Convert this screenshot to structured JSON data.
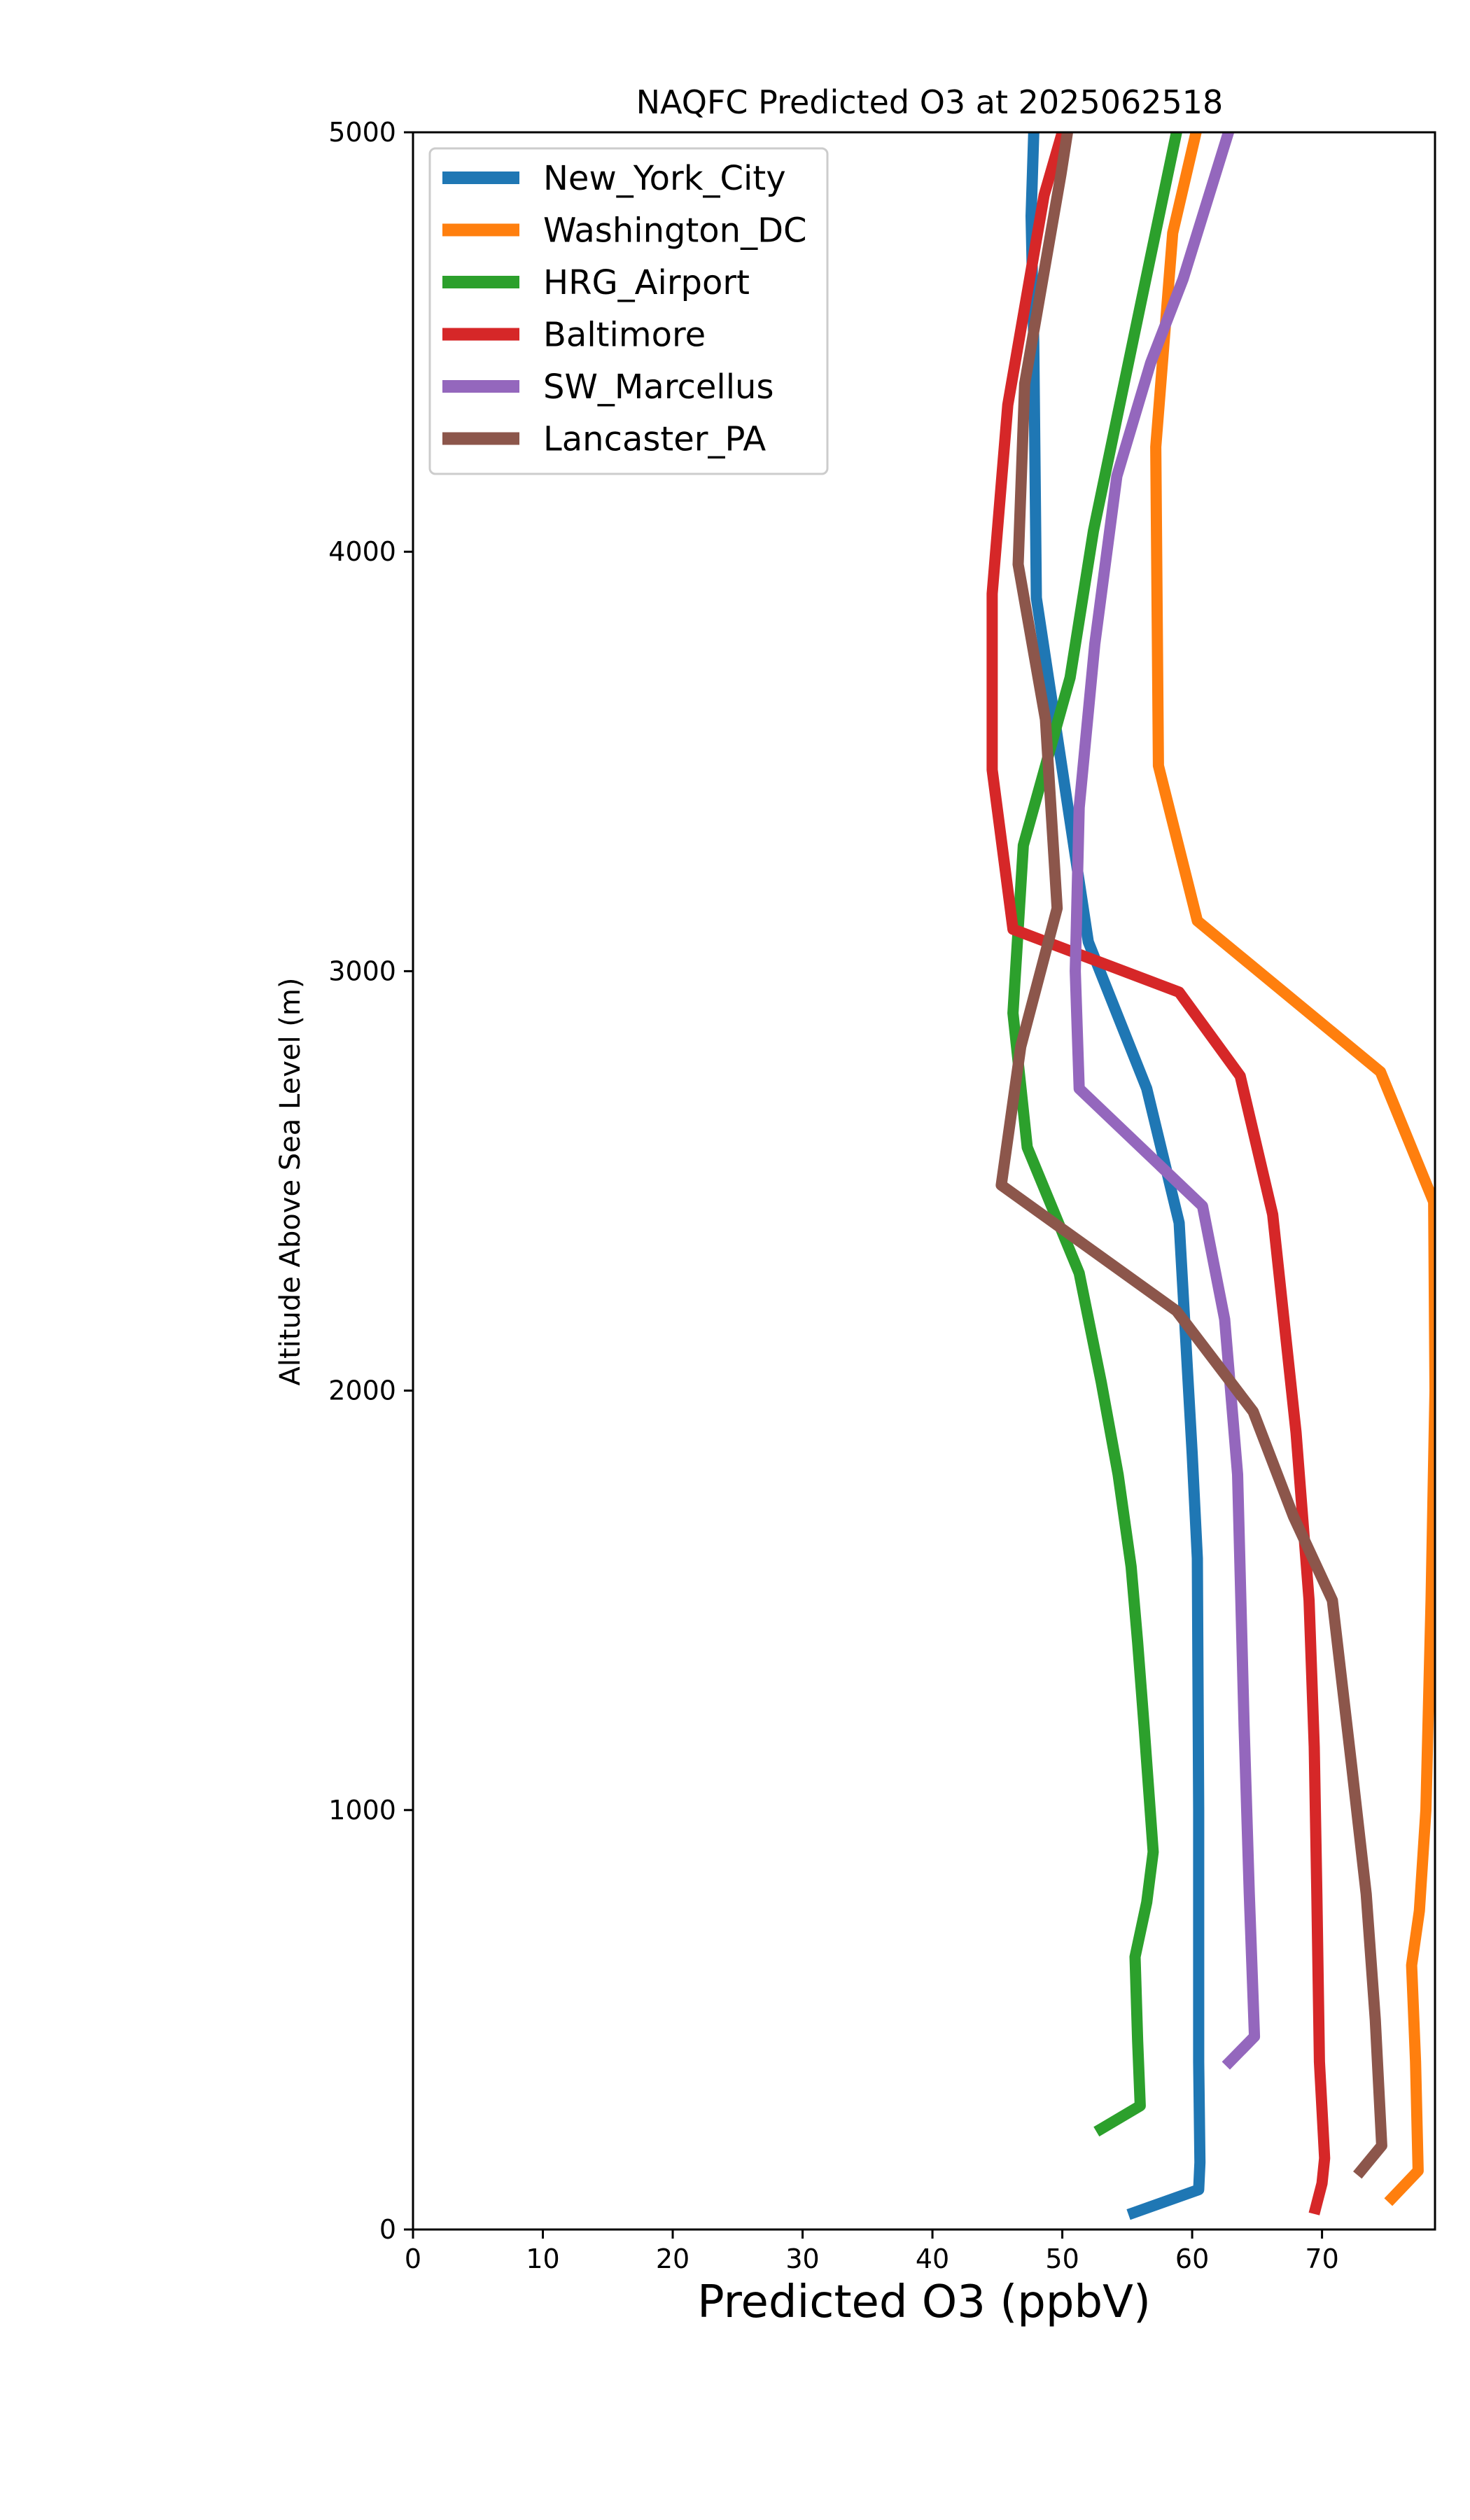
{
  "chart_data": {
    "type": "line",
    "title": "NAQFC Predicted O3 at 2025062518",
    "xlabel": "Predicted O3 (ppbV)",
    "ylabel": "Altitude Above Sea Level (m)",
    "xlim": [
      0,
      78.7
    ],
    "ylim": [
      0,
      5000
    ],
    "xticks": [
      "0",
      "10",
      "20",
      "30",
      "40",
      "50",
      "60",
      "70"
    ],
    "yticks": [
      "0",
      "1000",
      "2000",
      "3000",
      "4000",
      "5000"
    ],
    "grid": false,
    "legend_position": "upper-left",
    "series": [
      {
        "name": "New_York_City",
        "color": "#1f77b4",
        "points": [
          [
            55.5,
            40
          ],
          [
            60.5,
            95
          ],
          [
            60.6,
            160
          ],
          [
            60.5,
            400
          ],
          [
            60.5,
            1000
          ],
          [
            60.4,
            1600
          ],
          [
            60.0,
            1850
          ],
          [
            59.0,
            2400
          ],
          [
            56.5,
            2720
          ],
          [
            52.0,
            3070
          ],
          [
            48.0,
            3890
          ],
          [
            47.8,
            4500
          ],
          [
            47.6,
            4800
          ],
          [
            47.8,
            5000
          ]
        ]
      },
      {
        "name": "Washington_DC",
        "color": "#ff7f0e",
        "points": [
          [
            75.4,
            75
          ],
          [
            77.4,
            140
          ],
          [
            77.2,
            400
          ],
          [
            76.9,
            630
          ],
          [
            77.5,
            760
          ],
          [
            78.0,
            1000
          ],
          [
            78.4,
            1500
          ],
          [
            78.7,
            2000
          ],
          [
            78.6,
            2450
          ],
          [
            74.5,
            2760
          ],
          [
            60.4,
            3120
          ],
          [
            57.4,
            3490
          ],
          [
            57.2,
            4250
          ],
          [
            58.5,
            4760
          ],
          [
            60.3,
            5000
          ]
        ]
      },
      {
        "name": "HRG_Airport",
        "color": "#2ca02c",
        "points": [
          [
            53.0,
            240
          ],
          [
            56.0,
            295
          ],
          [
            55.8,
            450
          ],
          [
            55.6,
            650
          ],
          [
            56.5,
            780
          ],
          [
            57.0,
            900
          ],
          [
            56.3,
            1200
          ],
          [
            55.8,
            1400
          ],
          [
            55.3,
            1580
          ],
          [
            54.3,
            1800
          ],
          [
            53.0,
            2020
          ],
          [
            51.3,
            2280
          ],
          [
            47.3,
            2580
          ],
          [
            46.2,
            2900
          ],
          [
            47.0,
            3300
          ],
          [
            50.6,
            3700
          ],
          [
            52.4,
            4050
          ],
          [
            56.1,
            4600
          ],
          [
            58.8,
            5000
          ]
        ]
      },
      {
        "name": "Baltimore",
        "color": "#d62728",
        "points": [
          [
            69.5,
            50
          ],
          [
            70.0,
            110
          ],
          [
            70.2,
            170
          ],
          [
            69.8,
            400
          ],
          [
            69.6,
            800
          ],
          [
            69.4,
            1150
          ],
          [
            69.0,
            1500
          ],
          [
            68.0,
            1900
          ],
          [
            66.2,
            2420
          ],
          [
            63.7,
            2750
          ],
          [
            59.0,
            2950
          ],
          [
            46.2,
            3100
          ],
          [
            44.6,
            3480
          ],
          [
            44.6,
            3900
          ],
          [
            45.8,
            4350
          ],
          [
            48.6,
            4850
          ],
          [
            50.0,
            5000
          ]
        ]
      },
      {
        "name": "SW_Marcellus",
        "color": "#9467bd",
        "points": [
          [
            62.9,
            400
          ],
          [
            64.8,
            460
          ],
          [
            64.4,
            800
          ],
          [
            64.0,
            1200
          ],
          [
            63.5,
            1800
          ],
          [
            62.5,
            2170
          ],
          [
            60.8,
            2440
          ],
          [
            51.3,
            2720
          ],
          [
            51.0,
            3000
          ],
          [
            51.3,
            3390
          ],
          [
            52.5,
            3780
          ],
          [
            54.2,
            4180
          ],
          [
            56.8,
            4450
          ],
          [
            59.3,
            4650
          ],
          [
            62.8,
            5000
          ]
        ]
      },
      {
        "name": "Lancaster_PA",
        "color": "#8c564b",
        "points": [
          [
            73.0,
            140
          ],
          [
            74.6,
            200
          ],
          [
            74.1,
            500
          ],
          [
            73.4,
            800
          ],
          [
            72.3,
            1100
          ],
          [
            70.8,
            1500
          ],
          [
            67.8,
            1700
          ],
          [
            64.7,
            1950
          ],
          [
            58.8,
            2190
          ],
          [
            45.3,
            2490
          ],
          [
            46.8,
            2820
          ],
          [
            49.6,
            3150
          ],
          [
            48.7,
            3600
          ],
          [
            46.6,
            3970
          ],
          [
            47.1,
            4400
          ],
          [
            49.9,
            4900
          ],
          [
            50.4,
            5000
          ]
        ]
      }
    ]
  }
}
